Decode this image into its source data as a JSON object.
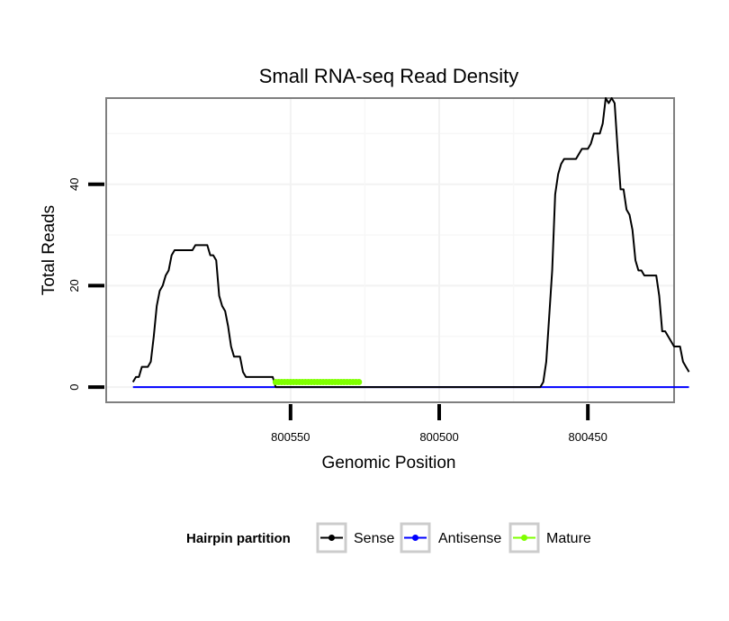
{
  "chart_data": {
    "type": "line",
    "title": "Small RNA-seq Read Density",
    "xlabel": "Genomic Position",
    "ylabel": "Total Reads",
    "x_reversed": true,
    "xlim": [
      800421,
      800612
    ],
    "ylim": [
      -3,
      57
    ],
    "x_ticks": [
      800550,
      800500,
      800450
    ],
    "x_tick_labels": [
      "800550",
      "800500",
      "800450"
    ],
    "y_ticks": [
      0,
      20,
      40
    ],
    "y_tick_labels": [
      "0",
      "20",
      "40"
    ],
    "grid": true,
    "legend": {
      "title": "Hairpin partition",
      "position": "bottom",
      "entries": [
        {
          "label": "Sense",
          "color": "#000000"
        },
        {
          "label": "Antisense",
          "color": "#0000ff"
        },
        {
          "label": "Mature",
          "color": "#7fff00"
        }
      ]
    },
    "series": [
      {
        "name": "Sense",
        "color": "#000000",
        "points": [
          [
            800603,
            1
          ],
          [
            800602,
            2
          ],
          [
            800601,
            2
          ],
          [
            800600,
            4
          ],
          [
            800598,
            4
          ],
          [
            800597,
            5
          ],
          [
            800596,
            10
          ],
          [
            800595,
            16
          ],
          [
            800594,
            19
          ],
          [
            800593,
            20
          ],
          [
            800592,
            22
          ],
          [
            800591,
            23
          ],
          [
            800590,
            26
          ],
          [
            800589,
            27
          ],
          [
            800588,
            27
          ],
          [
            800585,
            27
          ],
          [
            800583,
            27
          ],
          [
            800582,
            28
          ],
          [
            800578,
            28
          ],
          [
            800577,
            26
          ],
          [
            800576,
            26
          ],
          [
            800575,
            25
          ],
          [
            800574,
            18
          ],
          [
            800573,
            16
          ],
          [
            800572,
            15
          ],
          [
            800571,
            12
          ],
          [
            800570,
            8
          ],
          [
            800569,
            6
          ],
          [
            800567,
            6
          ],
          [
            800566,
            3
          ],
          [
            800565,
            2
          ],
          [
            800556,
            2
          ],
          [
            800555,
            0
          ],
          [
            800527,
            0
          ],
          [
            800501,
            0
          ],
          [
            800466,
            0
          ],
          [
            800465,
            1
          ],
          [
            800464,
            5
          ],
          [
            800463,
            14
          ],
          [
            800462,
            23
          ],
          [
            800461,
            38
          ],
          [
            800460,
            42
          ],
          [
            800459,
            44
          ],
          [
            800458,
            45
          ],
          [
            800454,
            45
          ],
          [
            800453,
            46
          ],
          [
            800452,
            47
          ],
          [
            800450,
            47
          ],
          [
            800449,
            48
          ],
          [
            800448,
            50
          ],
          [
            800446,
            50
          ],
          [
            800445,
            52
          ],
          [
            800444,
            57
          ],
          [
            800443,
            56
          ],
          [
            800442,
            57
          ],
          [
            800441,
            56
          ],
          [
            800440,
            47
          ],
          [
            800439,
            39
          ],
          [
            800438,
            39
          ],
          [
            800437,
            35
          ],
          [
            800436,
            34
          ],
          [
            800435,
            31
          ],
          [
            800434,
            25
          ],
          [
            800433,
            23
          ],
          [
            800432,
            23
          ],
          [
            800431,
            22
          ],
          [
            800427,
            22
          ],
          [
            800426,
            18
          ],
          [
            800425,
            11
          ],
          [
            800424,
            11
          ],
          [
            800423,
            10
          ],
          [
            800422,
            9
          ],
          [
            800421,
            8
          ],
          [
            800419,
            8
          ],
          [
            800418,
            5
          ],
          [
            800417,
            4
          ],
          [
            800416,
            3
          ]
        ]
      },
      {
        "name": "Antisense",
        "color": "#0000ff",
        "points": [
          [
            800603,
            0
          ],
          [
            800416,
            0
          ]
        ]
      },
      {
        "name": "Mature",
        "color": "#7fff00",
        "points": [
          [
            800555,
            1
          ],
          [
            800554,
            1
          ],
          [
            800553,
            1
          ],
          [
            800552,
            1
          ],
          [
            800551,
            1
          ],
          [
            800550,
            1
          ],
          [
            800549,
            1
          ],
          [
            800548,
            1
          ],
          [
            800547,
            1
          ],
          [
            800546,
            1
          ],
          [
            800545,
            1
          ],
          [
            800544,
            1
          ],
          [
            800543,
            1
          ],
          [
            800542,
            1
          ],
          [
            800541,
            1
          ],
          [
            800540,
            1
          ],
          [
            800539,
            1
          ],
          [
            800538,
            1
          ],
          [
            800537,
            1
          ],
          [
            800536,
            1
          ],
          [
            800535,
            1
          ],
          [
            800534,
            1
          ],
          [
            800533,
            1
          ],
          [
            800532,
            1
          ],
          [
            800531,
            1
          ],
          [
            800530,
            1
          ],
          [
            800529,
            1
          ],
          [
            800528,
            1
          ],
          [
            800527,
            1
          ]
        ]
      }
    ]
  }
}
